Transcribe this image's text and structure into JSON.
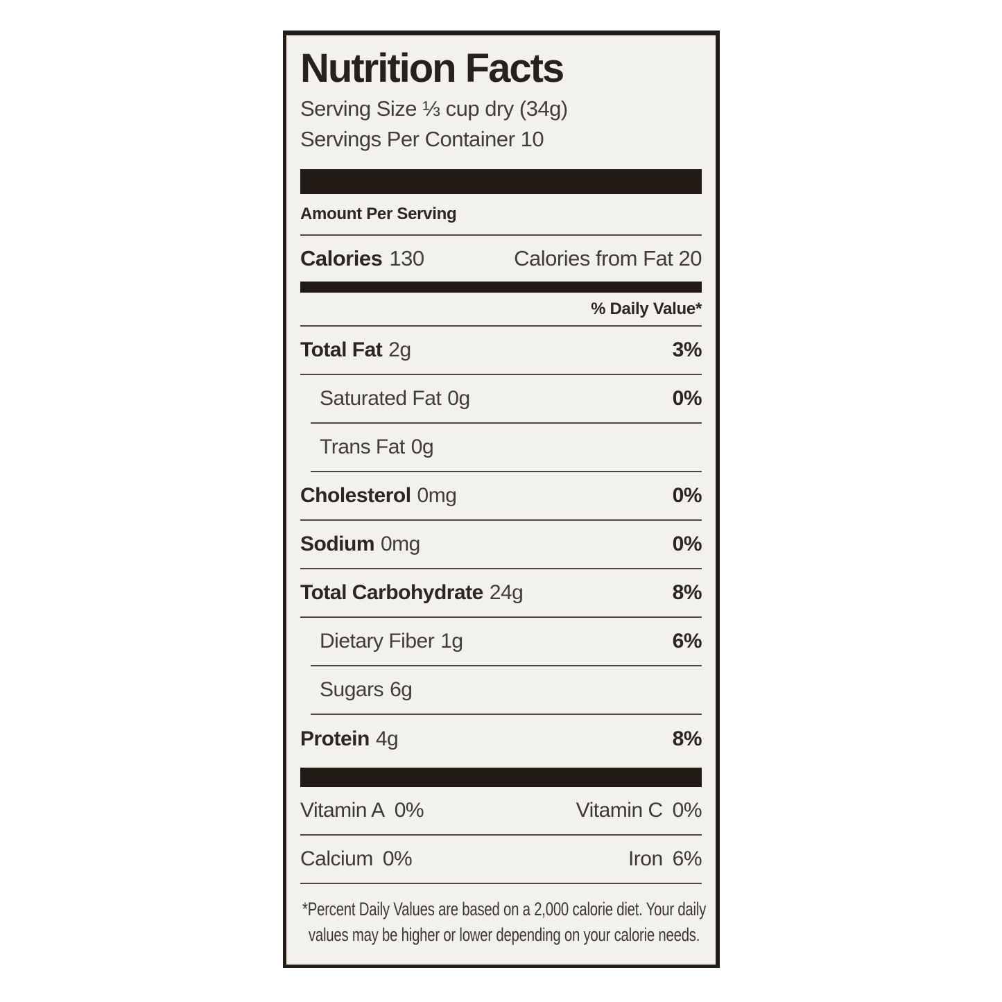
{
  "panel": {
    "title": "Nutrition Facts",
    "serving_size": "Serving Size ⅓ cup dry (34g)",
    "servings_per_container": "Servings Per Container 10",
    "amount_per_serving": "Amount Per Serving",
    "calories": {
      "label": "Calories",
      "value": "130",
      "from_fat": "Calories from Fat 20"
    },
    "daily_value_header": "% Daily Value*",
    "nutrients": [
      {
        "name": "Total Fat",
        "amount": "2g",
        "dv": "3%"
      },
      {
        "name": "Saturated Fat",
        "amount": "0g",
        "dv": "0%"
      },
      {
        "name": "Trans Fat",
        "amount": "0g",
        "dv": ""
      },
      {
        "name": "Cholesterol",
        "amount": "0mg",
        "dv": "0%"
      },
      {
        "name": "Sodium",
        "amount": "0mg",
        "dv": "0%"
      },
      {
        "name": "Total Carbohydrate",
        "amount": "24g",
        "dv": "8%"
      },
      {
        "name": "Dietary Fiber",
        "amount": "1g",
        "dv": "6%"
      },
      {
        "name": "Sugars",
        "amount": "6g",
        "dv": ""
      },
      {
        "name": "Protein",
        "amount": "4g",
        "dv": "8%"
      }
    ],
    "micros": [
      {
        "left_name": "Vitamin A",
        "left_value": "0%",
        "right_name": "Vitamin C",
        "right_value": "0%"
      },
      {
        "left_name": "Calcium",
        "left_value": "0%",
        "right_name": "Iron",
        "right_value": "6%"
      }
    ],
    "footnote_line1": "*Percent Daily Values are based on a 2,000 calorie diet. Your daily",
    "footnote_line2": "values may be higher or lower depending on your calorie needs.",
    "colors": {
      "panel_bg": "#f2f1ee",
      "ink": "#2a2522",
      "bar": "#221a14"
    }
  }
}
